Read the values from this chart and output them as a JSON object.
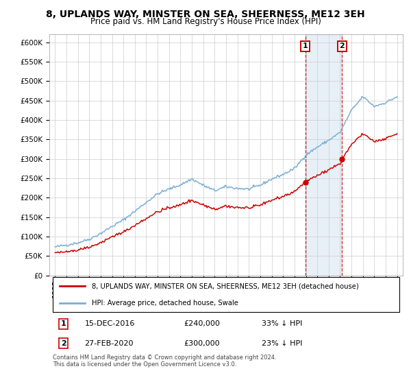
{
  "title": "8, UPLANDS WAY, MINSTER ON SEA, SHEERNESS, ME12 3EH",
  "subtitle": "Price paid vs. HM Land Registry's House Price Index (HPI)",
  "legend_line1": "8, UPLANDS WAY, MINSTER ON SEA, SHEERNESS, ME12 3EH (detached house)",
  "legend_line2": "HPI: Average price, detached house, Swale",
  "transaction1_date": "15-DEC-2016",
  "transaction1_price": "£240,000",
  "transaction1_hpi": "33% ↓ HPI",
  "transaction2_date": "27-FEB-2020",
  "transaction2_price": "£300,000",
  "transaction2_hpi": "23% ↓ HPI",
  "footnote": "Contains HM Land Registry data © Crown copyright and database right 2024.\nThis data is licensed under the Open Government Licence v3.0.",
  "ylim": [
    0,
    620000
  ],
  "yticks": [
    0,
    50000,
    100000,
    150000,
    200000,
    250000,
    300000,
    350000,
    400000,
    450000,
    500000,
    550000,
    600000
  ],
  "hpi_color": "#7bafd4",
  "price_color": "#cc0000",
  "marker1_x": 2016.958,
  "marker1_y": 240000,
  "marker2_x": 2020.164,
  "marker2_y": 300000,
  "shaded_x1": 2016.958,
  "shaded_x2": 2020.164,
  "bg_color": "#ffffff",
  "grid_color": "#cccccc",
  "xlim_left": 1994.5,
  "xlim_right": 2025.5
}
